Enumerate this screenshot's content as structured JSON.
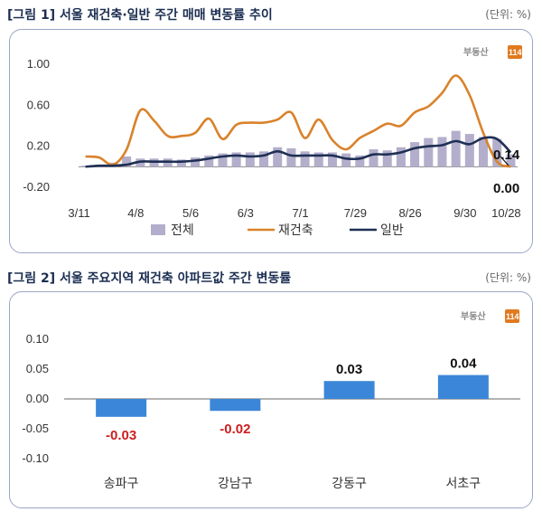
{
  "fig1": {
    "title": "[그림 1] 서울 재건축·일반 주간 매매 변동률 추이",
    "unit": "(단위: %)",
    "logo": {
      "text": "부동산",
      "num": "114"
    },
    "legend": [
      "전체",
      "재건축",
      "일반"
    ],
    "annotations": {
      "last_general": "0.14",
      "last_rebuild": "0.00"
    },
    "colors": {
      "total": "#b3aecb",
      "rebuild": "#d9822b",
      "general": "#1f2f54"
    },
    "chart_data": {
      "type": "line",
      "x_labels": [
        "3/11",
        "4/8",
        "5/6",
        "6/3",
        "7/1",
        "7/29",
        "8/26",
        "9/30",
        "10/28"
      ],
      "y_ticks": [
        "1.00",
        "0.60",
        "0.20",
        "-0.20"
      ],
      "ylim": [
        -0.2,
        1.0
      ],
      "series": [
        {
          "name": "전체",
          "type": "bar",
          "values": [
            0.01,
            0.02,
            0.04,
            0.1,
            0.08,
            0.08,
            0.08,
            0.07,
            0.09,
            0.11,
            0.13,
            0.14,
            0.14,
            0.15,
            0.19,
            0.18,
            0.15,
            0.14,
            0.14,
            0.13,
            0.11,
            0.17,
            0.16,
            0.19,
            0.24,
            0.28,
            0.29,
            0.35,
            0.32,
            0.29,
            0.27,
            0.12
          ]
        },
        {
          "name": "재건축",
          "type": "line",
          "values": [
            0.1,
            0.09,
            0.02,
            0.17,
            0.55,
            0.45,
            0.3,
            0.3,
            0.33,
            0.47,
            0.27,
            0.41,
            0.43,
            0.43,
            0.46,
            0.53,
            0.28,
            0.46,
            0.26,
            0.17,
            0.28,
            0.35,
            0.42,
            0.4,
            0.53,
            0.59,
            0.72,
            0.89,
            0.7,
            0.33,
            0.05,
            0.0
          ]
        },
        {
          "name": "일반",
          "type": "line",
          "values": [
            0.0,
            0.01,
            0.01,
            0.02,
            0.05,
            0.05,
            0.05,
            0.05,
            0.06,
            0.08,
            0.1,
            0.11,
            0.1,
            0.11,
            0.15,
            0.11,
            0.11,
            0.11,
            0.11,
            0.08,
            0.08,
            0.12,
            0.12,
            0.14,
            0.18,
            0.2,
            0.21,
            0.25,
            0.22,
            0.28,
            0.27,
            0.14
          ]
        }
      ]
    }
  },
  "fig2": {
    "title": "[그림 2] 서울 주요지역 재건축 아파트값 주간 변동률",
    "unit": "(단위: %)",
    "logo": {
      "text": "부동산",
      "num": "114"
    },
    "colors": {
      "bar": "#3b86d8",
      "negative_label": "#cc1f1f",
      "positive_label": "#111111"
    },
    "chart_data": {
      "type": "bar",
      "categories": [
        "송파구",
        "강남구",
        "강동구",
        "서초구"
      ],
      "values": [
        -0.03,
        -0.02,
        0.03,
        0.04
      ],
      "value_labels": [
        "-0.03",
        "-0.02",
        "0.03",
        "0.04"
      ],
      "y_ticks": [
        "0.10",
        "0.05",
        "0.00",
        "-0.05",
        "-0.10"
      ],
      "ylim": [
        -0.1,
        0.1
      ]
    }
  }
}
